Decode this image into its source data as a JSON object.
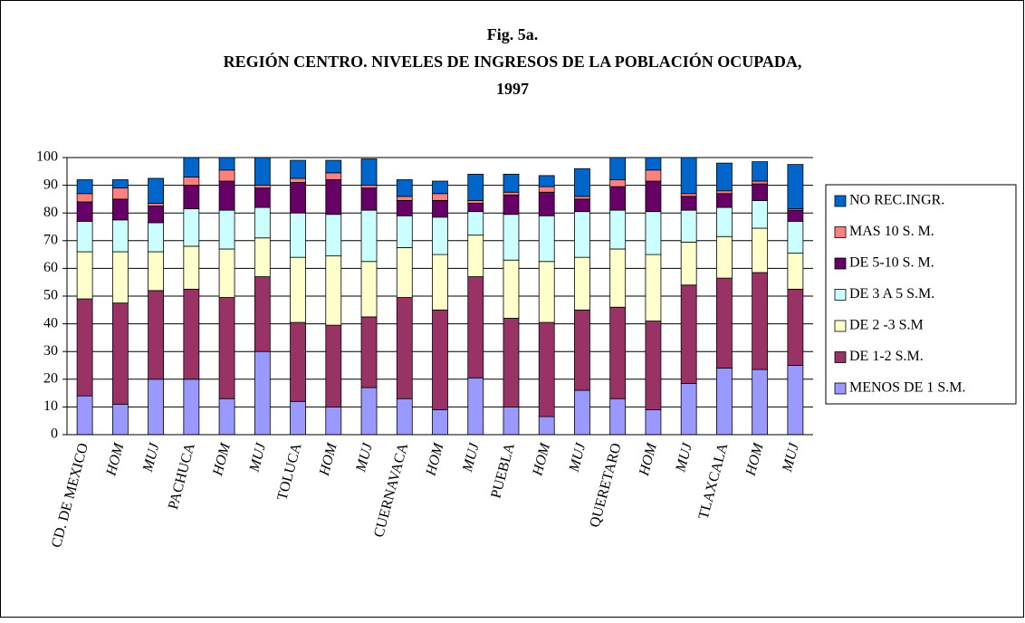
{
  "chart_data": {
    "type": "stacked_bar",
    "title": [
      "Fig. 5a.",
      "REGIÓN CENTRO. NIVELES DE INGRESOS DE LA POBLACIÓN OCUPADA,",
      "1997"
    ],
    "categories": [
      "CD. DE MEXICO",
      "HOM",
      "MUJ",
      "PACHUCA",
      "HOM",
      "MUJ",
      "TOLUCA",
      "HOM",
      "MUJ",
      "CUERNAVACA",
      "HOM",
      "MUJ",
      "PUEBLA",
      "HOM",
      "MUJ",
      "QUERETARO",
      "HOM",
      "MUJ",
      "TLAXCALA",
      "HOM",
      "MUJ"
    ],
    "series": [
      {
        "name": "MENOS DE 1 S.M.",
        "color": "#9999ff",
        "values": [
          14,
          11,
          20,
          20,
          13,
          30,
          12,
          10,
          17,
          13,
          9,
          20.5,
          10,
          6.5,
          16,
          13,
          9,
          18.5,
          24,
          23.5,
          25
        ]
      },
      {
        "name": "DE 1-2 S.M.",
        "color": "#993366",
        "values": [
          35,
          36.5,
          32,
          32.5,
          36.5,
          27,
          28.5,
          29.5,
          25.5,
          36.5,
          36,
          36.5,
          32,
          34,
          29,
          33,
          32,
          35.5,
          32.5,
          35,
          27.5
        ]
      },
      {
        "name": "DE 2 -3 S.M",
        "color": "#ffffcc",
        "values": [
          17,
          18.5,
          14,
          15.5,
          17.5,
          14,
          23.5,
          25,
          20,
          18,
          20,
          15,
          21,
          22,
          19,
          21,
          24,
          15.5,
          15,
          16,
          13
        ]
      },
      {
        "name": "DE 3 A 5 S.M.",
        "color": "#ccffff",
        "values": [
          11,
          11.5,
          10.5,
          13.5,
          14,
          11,
          16,
          15,
          18.5,
          11.5,
          13.5,
          8.5,
          16.5,
          16.5,
          16.5,
          14,
          15.5,
          11.5,
          10.5,
          10,
          11.5
        ]
      },
      {
        "name": "DE 5-10 S. M.",
        "color": "#660066",
        "values": [
          7,
          7.5,
          6,
          8.5,
          10.5,
          7,
          11,
          12.5,
          8,
          5.5,
          6,
          3,
          7,
          8.5,
          4.5,
          8.5,
          11,
          5,
          5,
          6,
          4
        ]
      },
      {
        "name": "MAS 10 S. M.",
        "color": "#ff8080",
        "values": [
          3,
          4,
          1,
          3,
          4,
          1,
          1.5,
          2.5,
          1,
          1.5,
          2.5,
          1,
          1,
          2,
          1,
          2.5,
          4,
          1,
          1,
          1,
          0.5
        ]
      },
      {
        "name": "NO REC.INGR.",
        "color": "#0066cc",
        "values": [
          5,
          3,
          9,
          7,
          4.5,
          10,
          6.5,
          4.5,
          9.5,
          6,
          4.5,
          9.5,
          6.5,
          4,
          10,
          8,
          4.5,
          13,
          10,
          7,
          16
        ]
      }
    ],
    "ylim": [
      0,
      100
    ],
    "yticks": [
      0,
      10,
      20,
      30,
      40,
      50,
      60,
      70,
      80,
      90,
      100
    ],
    "grid": true,
    "legend": "right"
  }
}
